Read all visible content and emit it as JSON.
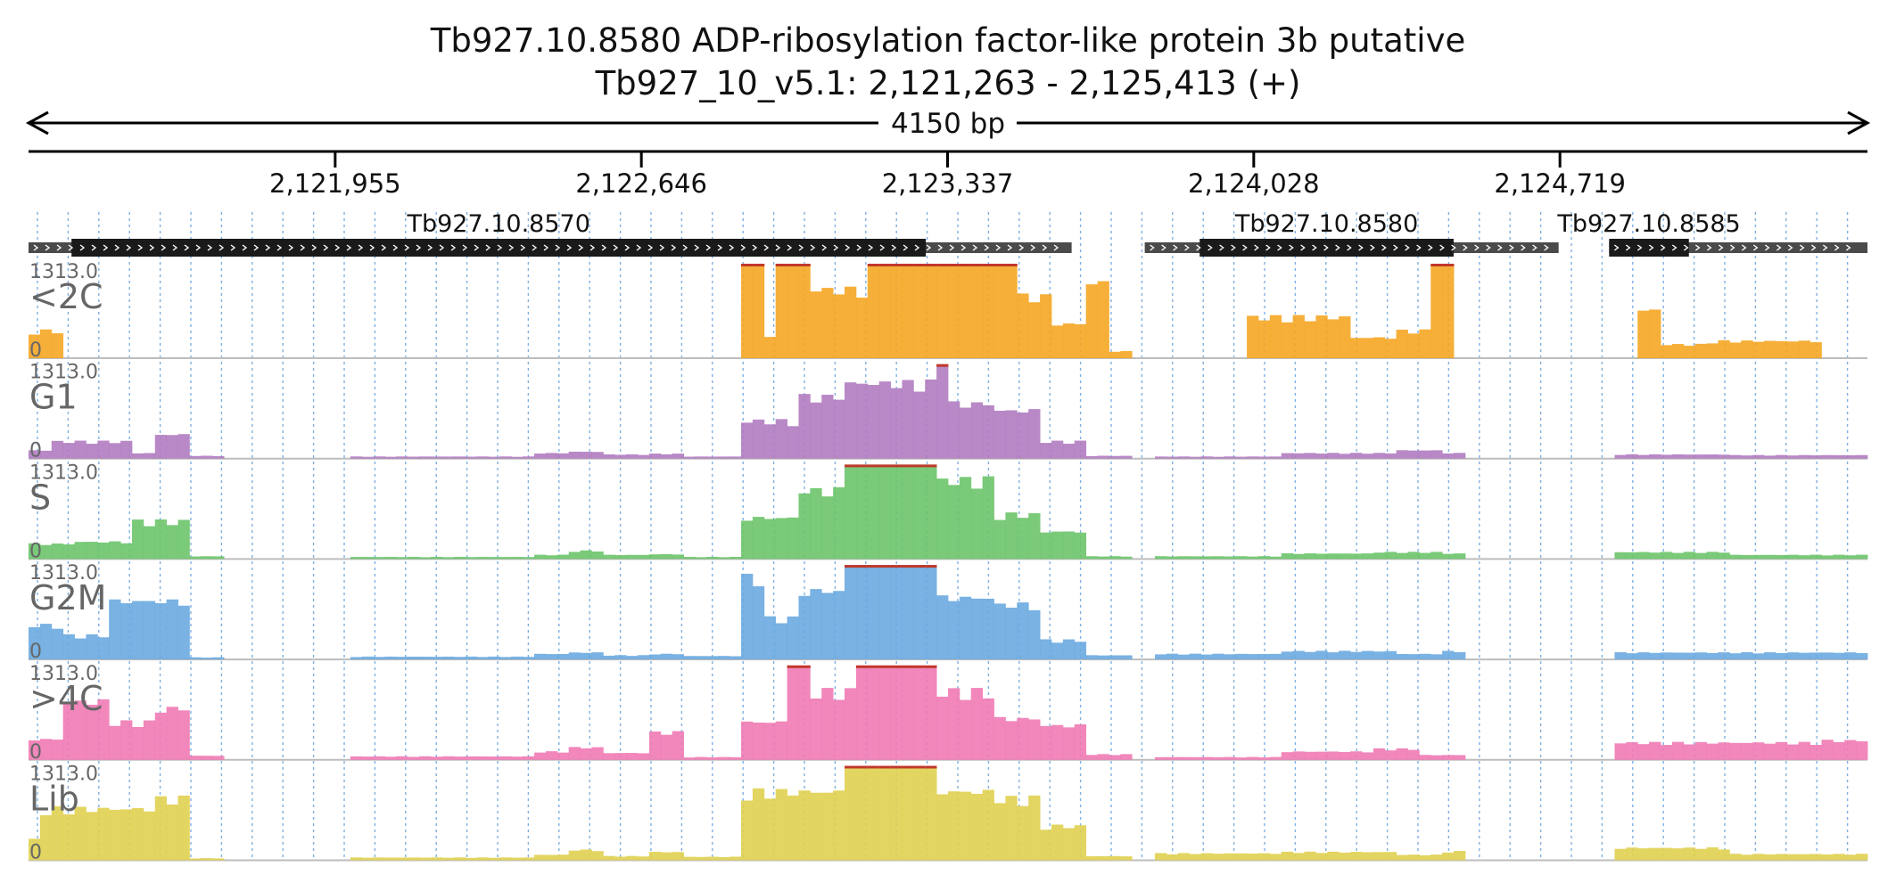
{
  "header": {
    "title": "Tb927.10.8580  ADP-ribosylation factor-like protein 3b  putative",
    "location": "Tb927_10_v5.1: 2,121,263 - 2,125,413 (+)",
    "span_label": "4150 bp"
  },
  "region": {
    "start": 2121263,
    "end": 2125413
  },
  "ruler": {
    "ticks": [
      {
        "position": 2121955,
        "label": "2,121,955"
      },
      {
        "position": 2122646,
        "label": "2,122,646"
      },
      {
        "position": 2123337,
        "label": "2,123,337"
      },
      {
        "position": 2124028,
        "label": "2,124,028"
      },
      {
        "position": 2124719,
        "label": "2,124,719"
      }
    ]
  },
  "genes": [
    {
      "name": "Tb927.10.8570",
      "start": 2121263,
      "end": 2123617,
      "cds_start": 2121360,
      "cds_end": 2123288
    },
    {
      "name": "Tb927.10.8580",
      "start": 2123782,
      "end": 2124716,
      "cds_start": 2123906,
      "cds_end": 2124479
    },
    {
      "name": "Tb927.10.8585",
      "start": 2124830,
      "end": 2125413,
      "cds_start": 2124830,
      "cds_end": 2125010
    }
  ],
  "colors": {
    "axis": "#000000",
    "gene_utr": "#4a4a4a",
    "gene_cds": "#1a1a1a",
    "grid": "#7fb0e0",
    "clip": "#c0392b",
    "track_label": "#666666"
  },
  "chart_data": {
    "type": "area",
    "ymin": 0,
    "ymax": 1313.0,
    "ymax_label": "1313.0",
    "ymin_label": "0",
    "bins": 160,
    "tracks": [
      {
        "name": "<2C",
        "color": "#f5a623"
      },
      {
        "name": "G1",
        "color": "#b07cc0"
      },
      {
        "name": "S",
        "color": "#6cc46a"
      },
      {
        "name": "G2M",
        "color": "#6aaae0"
      },
      {
        "name": ">4C",
        "color": "#f07ab4"
      },
      {
        "name": "Lib",
        "color": "#e0d050"
      }
    ],
    "series_profiles": [
      [
        [
          2121263,
          2121350,
          400
        ],
        [
          2121350,
          2121800,
          0
        ],
        [
          2122800,
          2122872,
          0
        ],
        [
          2122872,
          2122930,
          1313
        ],
        [
          2122930,
          2122960,
          300
        ],
        [
          2122960,
          2123020,
          1313
        ],
        [
          2123020,
          2123150,
          1000
        ],
        [
          2123150,
          2123500,
          1313
        ],
        [
          2123500,
          2123580,
          900
        ],
        [
          2123580,
          2123640,
          500
        ],
        [
          2123640,
          2123700,
          1100
        ],
        [
          2123700,
          2123760,
          100
        ],
        [
          2124000,
          2124250,
          600
        ],
        [
          2124250,
          2124350,
          300
        ],
        [
          2124350,
          2124430,
          400
        ],
        [
          2124430,
          2124490,
          1313
        ],
        [
          2124900,
          2124950,
          700
        ],
        [
          2124950,
          2125060,
          200
        ],
        [
          2125060,
          2125300,
          250
        ]
      ],
      [
        [
          2121263,
          2121320,
          120
        ],
        [
          2121320,
          2121500,
          250
        ],
        [
          2121500,
          2121560,
          80
        ],
        [
          2121560,
          2121620,
          350
        ],
        [
          2121620,
          2121700,
          40
        ],
        [
          2122000,
          2122400,
          30
        ],
        [
          2122400,
          2122470,
          80
        ],
        [
          2122470,
          2122560,
          100
        ],
        [
          2122560,
          2122660,
          60
        ],
        [
          2122660,
          2122730,
          70
        ],
        [
          2122730,
          2122880,
          30
        ],
        [
          2122872,
          2123000,
          550
        ],
        [
          2123000,
          2123100,
          900
        ],
        [
          2123100,
          2123300,
          1100
        ],
        [
          2123300,
          2123350,
          1313
        ],
        [
          2123350,
          2123450,
          800
        ],
        [
          2123450,
          2123550,
          700
        ],
        [
          2123550,
          2123660,
          250
        ],
        [
          2123660,
          2123760,
          40
        ],
        [
          2123800,
          2124100,
          30
        ],
        [
          2124100,
          2124350,
          80
        ],
        [
          2124350,
          2124450,
          120
        ],
        [
          2124450,
          2124500,
          80
        ],
        [
          2124850,
          2125100,
          60
        ],
        [
          2125100,
          2125413,
          50
        ]
      ],
      [
        [
          2121263,
          2121360,
          220
        ],
        [
          2121360,
          2121500,
          250
        ],
        [
          2121500,
          2121620,
          550
        ],
        [
          2121620,
          2121700,
          40
        ],
        [
          2122000,
          2122400,
          30
        ],
        [
          2122400,
          2122470,
          60
        ],
        [
          2122470,
          2122560,
          120
        ],
        [
          2122560,
          2122660,
          60
        ],
        [
          2122660,
          2122730,
          70
        ],
        [
          2122730,
          2122880,
          30
        ],
        [
          2122872,
          2123000,
          600
        ],
        [
          2123000,
          2123100,
          1000
        ],
        [
          2123100,
          2123300,
          1313
        ],
        [
          2123300,
          2123450,
          1150
        ],
        [
          2123450,
          2123550,
          650
        ],
        [
          2123550,
          2123660,
          400
        ],
        [
          2123660,
          2123760,
          40
        ],
        [
          2123800,
          2124100,
          40
        ],
        [
          2124100,
          2124300,
          80
        ],
        [
          2124300,
          2124450,
          100
        ],
        [
          2124450,
          2124500,
          80
        ],
        [
          2124850,
          2125100,
          100
        ],
        [
          2125100,
          2125413,
          60
        ]
      ],
      [
        [
          2121263,
          2121330,
          500
        ],
        [
          2121330,
          2121440,
          350
        ],
        [
          2121440,
          2121560,
          850
        ],
        [
          2121560,
          2121620,
          850
        ],
        [
          2121620,
          2121700,
          30
        ],
        [
          2122000,
          2122400,
          40
        ],
        [
          2122400,
          2122470,
          80
        ],
        [
          2122470,
          2122560,
          100
        ],
        [
          2122560,
          2122660,
          60
        ],
        [
          2122660,
          2122730,
          80
        ],
        [
          2122730,
          2122880,
          50
        ],
        [
          2122872,
          2122920,
          1200
        ],
        [
          2122920,
          2123000,
          600
        ],
        [
          2123000,
          2123100,
          1000
        ],
        [
          2123100,
          2123300,
          1313
        ],
        [
          2123300,
          2123450,
          900
        ],
        [
          2123450,
          2123550,
          800
        ],
        [
          2123550,
          2123660,
          280
        ],
        [
          2123660,
          2123760,
          60
        ],
        [
          2123800,
          2124100,
          80
        ],
        [
          2124100,
          2124350,
          120
        ],
        [
          2124350,
          2124450,
          80
        ],
        [
          2124450,
          2124500,
          120
        ],
        [
          2124850,
          2125100,
          100
        ],
        [
          2125100,
          2125413,
          100
        ]
      ],
      [
        [
          2121263,
          2121330,
          300
        ],
        [
          2121330,
          2121440,
          850
        ],
        [
          2121440,
          2121560,
          550
        ],
        [
          2121560,
          2121620,
          750
        ],
        [
          2121620,
          2121700,
          60
        ],
        [
          2122000,
          2122400,
          50
        ],
        [
          2122400,
          2122470,
          120
        ],
        [
          2122470,
          2122560,
          180
        ],
        [
          2122560,
          2122660,
          100
        ],
        [
          2122660,
          2122730,
          400
        ],
        [
          2122730,
          2122880,
          40
        ],
        [
          2122872,
          2122980,
          550
        ],
        [
          2122980,
          2123030,
          1313
        ],
        [
          2123030,
          2123120,
          1000
        ],
        [
          2123120,
          2123300,
          1313
        ],
        [
          2123300,
          2123450,
          1000
        ],
        [
          2123450,
          2123550,
          600
        ],
        [
          2123550,
          2123660,
          500
        ],
        [
          2123660,
          2123760,
          80
        ],
        [
          2123800,
          2124100,
          40
        ],
        [
          2124100,
          2124300,
          120
        ],
        [
          2124300,
          2124400,
          160
        ],
        [
          2124400,
          2124500,
          70
        ],
        [
          2124850,
          2124950,
          250
        ],
        [
          2124950,
          2125300,
          250
        ],
        [
          2125300,
          2125413,
          280
        ]
      ],
      [
        [
          2121263,
          2121300,
          300
        ],
        [
          2121300,
          2121420,
          750
        ],
        [
          2121420,
          2121560,
          750
        ],
        [
          2121560,
          2121620,
          900
        ],
        [
          2121620,
          2121700,
          30
        ],
        [
          2122000,
          2122400,
          40
        ],
        [
          2122400,
          2122470,
          80
        ],
        [
          2122470,
          2122560,
          150
        ],
        [
          2122560,
          2122660,
          60
        ],
        [
          2122660,
          2122730,
          120
        ],
        [
          2122730,
          2122880,
          50
        ],
        [
          2122872,
          2122960,
          1000
        ],
        [
          2122960,
          2123100,
          1000
        ],
        [
          2123100,
          2123300,
          1313
        ],
        [
          2123300,
          2123450,
          1000
        ],
        [
          2123450,
          2123550,
          900
        ],
        [
          2123550,
          2123660,
          500
        ],
        [
          2123660,
          2123760,
          60
        ],
        [
          2123800,
          2124100,
          100
        ],
        [
          2124100,
          2124350,
          120
        ],
        [
          2124350,
          2124450,
          80
        ],
        [
          2124450,
          2124500,
          130
        ],
        [
          2124850,
          2125100,
          180
        ],
        [
          2125100,
          2125413,
          90
        ]
      ]
    ]
  }
}
